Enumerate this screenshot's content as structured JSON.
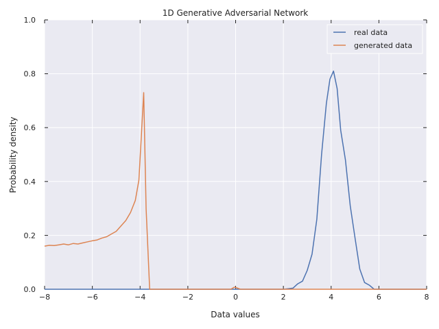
{
  "chart_data": {
    "type": "line",
    "title": "1D Generative Adversarial Network",
    "xlabel": "Data values",
    "ylabel": "Probability density",
    "xlim": [
      -8,
      8
    ],
    "ylim": [
      0,
      1.0
    ],
    "grid": true,
    "legend_position": "top-right",
    "x_ticks": [
      "−8",
      "−6",
      "−4",
      "−2",
      "0",
      "2",
      "4",
      "6",
      "8"
    ],
    "x_tick_values": [
      -8,
      -6,
      -4,
      -2,
      0,
      2,
      4,
      6,
      8
    ],
    "y_ticks": [
      "0.0",
      "0.2",
      "0.4",
      "0.6",
      "0.8",
      "1.0"
    ],
    "y_tick_values": [
      0,
      0.2,
      0.4,
      0.6,
      0.8,
      1.0
    ],
    "colors": {
      "plot_bg": "#eaeaf2",
      "grid": "#ffffff",
      "real": "#4c72b0",
      "generated": "#dd8452"
    },
    "series": [
      {
        "name": "real data",
        "color": "#4c72b0",
        "x": [
          -8,
          2.0,
          2.2,
          2.4,
          2.6,
          2.8,
          3.0,
          3.2,
          3.4,
          3.6,
          3.8,
          3.95,
          4.1,
          4.25,
          4.4,
          4.6,
          4.8,
          5.0,
          5.2,
          5.4,
          5.6,
          5.8,
          8
        ],
        "y": [
          0,
          0,
          0.002,
          0.004,
          0.02,
          0.03,
          0.07,
          0.13,
          0.26,
          0.5,
          0.69,
          0.78,
          0.81,
          0.745,
          0.59,
          0.48,
          0.31,
          0.19,
          0.075,
          0.025,
          0.015,
          0.0,
          0
        ]
      },
      {
        "name": "generated data",
        "color": "#dd8452",
        "x": [
          -8,
          -7.8,
          -7.6,
          -7.4,
          -7.2,
          -7.0,
          -6.8,
          -6.6,
          -6.4,
          -6.2,
          -6.0,
          -5.8,
          -5.6,
          -5.4,
          -5.2,
          -5.0,
          -4.8,
          -4.6,
          -4.4,
          -4.2,
          -4.05,
          -3.85,
          -3.75,
          -3.6,
          -0.2,
          -0.05,
          0.05,
          0.2,
          8
        ],
        "y": [
          0.16,
          0.163,
          0.162,
          0.165,
          0.168,
          0.165,
          0.17,
          0.168,
          0.172,
          0.176,
          0.18,
          0.183,
          0.19,
          0.195,
          0.205,
          0.215,
          0.235,
          0.255,
          0.285,
          0.33,
          0.405,
          0.73,
          0.3,
          0.0,
          0.0,
          0.008,
          0.005,
          0.0,
          0
        ]
      }
    ]
  }
}
